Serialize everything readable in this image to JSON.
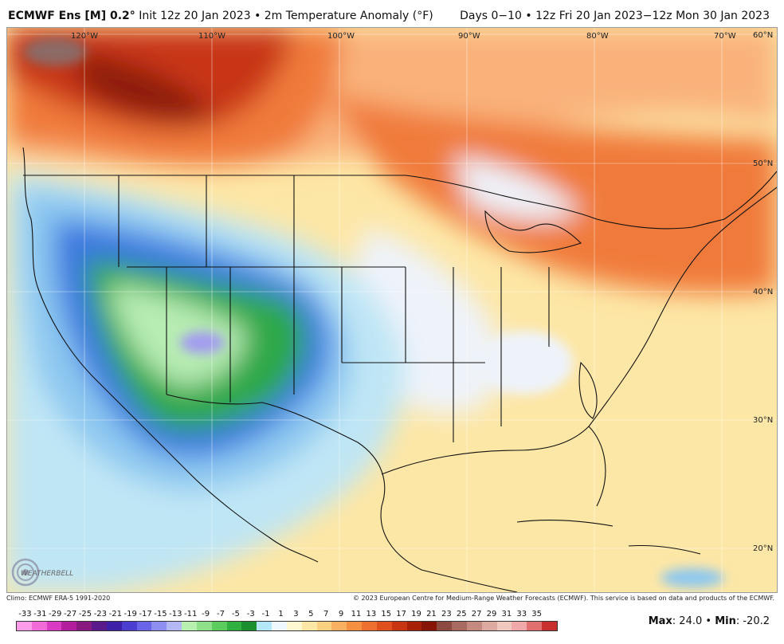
{
  "header": {
    "model": "ECMWF Ens [M] 0.2",
    "degree_symbol": "°",
    "init": " Init 12z 20 Jan 2023 • 2m Temperature Anomaly (°F)",
    "range": "Days 0−10 • 12z Fri 20 Jan 2023−12z Mon 30 Jan 2023"
  },
  "map": {
    "lon_labels": [
      "120°W",
      "110°W",
      "100°W",
      "90°W",
      "80°W",
      "70°W"
    ],
    "lat_labels": [
      "60°N",
      "50°N",
      "40°N",
      "30°N",
      "20°N"
    ],
    "colors": {
      "warm_dark": "#8b1a0f",
      "warm_red": "#c83512",
      "warm_orange": "#f07a3a",
      "warm_light": "#f9b27a",
      "warm_pale": "#fde7a6",
      "neutral": "#eef3fa",
      "cool_pale": "#bfe6f5",
      "cool_light": "#8cc7f0",
      "cool_blue": "#3a78e0",
      "cool_deep": "#1d49c8",
      "cold_green": "#2ea84a",
      "cold_lightgreen": "#b7ecb2",
      "cold_purple": "#a39cf0"
    }
  },
  "footer": {
    "climo": "Climo: ECMWF ERA-5 1991-2020",
    "copyright": "© 2023 European Centre for Medium-Range Weather Forecasts (ECMWF). This service is based on data and products of the ECMWF.",
    "logo_text": "WEATHERBELL",
    "max_label": "Max",
    "max_value": ": 24.0 • ",
    "min_label": "Min",
    "min_value": ": -20.2"
  },
  "colorbar": {
    "labels": [
      "-33",
      "-31",
      "-29",
      "-27",
      "-25",
      "-23",
      "-21",
      "-19",
      "-17",
      "-15",
      "-13",
      "-11",
      "-9",
      "-7",
      "-5",
      "-3",
      "-1",
      "1",
      "3",
      "5",
      "7",
      "9",
      "11",
      "13",
      "15",
      "17",
      "19",
      "21",
      "23",
      "25",
      "27",
      "29",
      "31",
      "33",
      "35"
    ],
    "swatches": [
      "#ff9be8",
      "#f06ad8",
      "#d93bc2",
      "#b21e9c",
      "#8a1a80",
      "#5a1a8c",
      "#3d1fa8",
      "#4b3ed0",
      "#6a64e8",
      "#8e8ef0",
      "#b4b8f5",
      "#b8f0b0",
      "#8ee08a",
      "#5ccc5e",
      "#30b040",
      "#1c9030",
      "#b4e8f8",
      "#f0f8ff",
      "#fff8d0",
      "#fde7a6",
      "#fbd080",
      "#f9b060",
      "#f59042",
      "#ee7030",
      "#e0501e",
      "#c83512",
      "#a82008",
      "#861506",
      "#8c4a40",
      "#a86a60",
      "#c48a80",
      "#dcaaa0",
      "#f0c8c0",
      "#f0a8a8",
      "#e07070",
      "#c83030"
    ]
  }
}
